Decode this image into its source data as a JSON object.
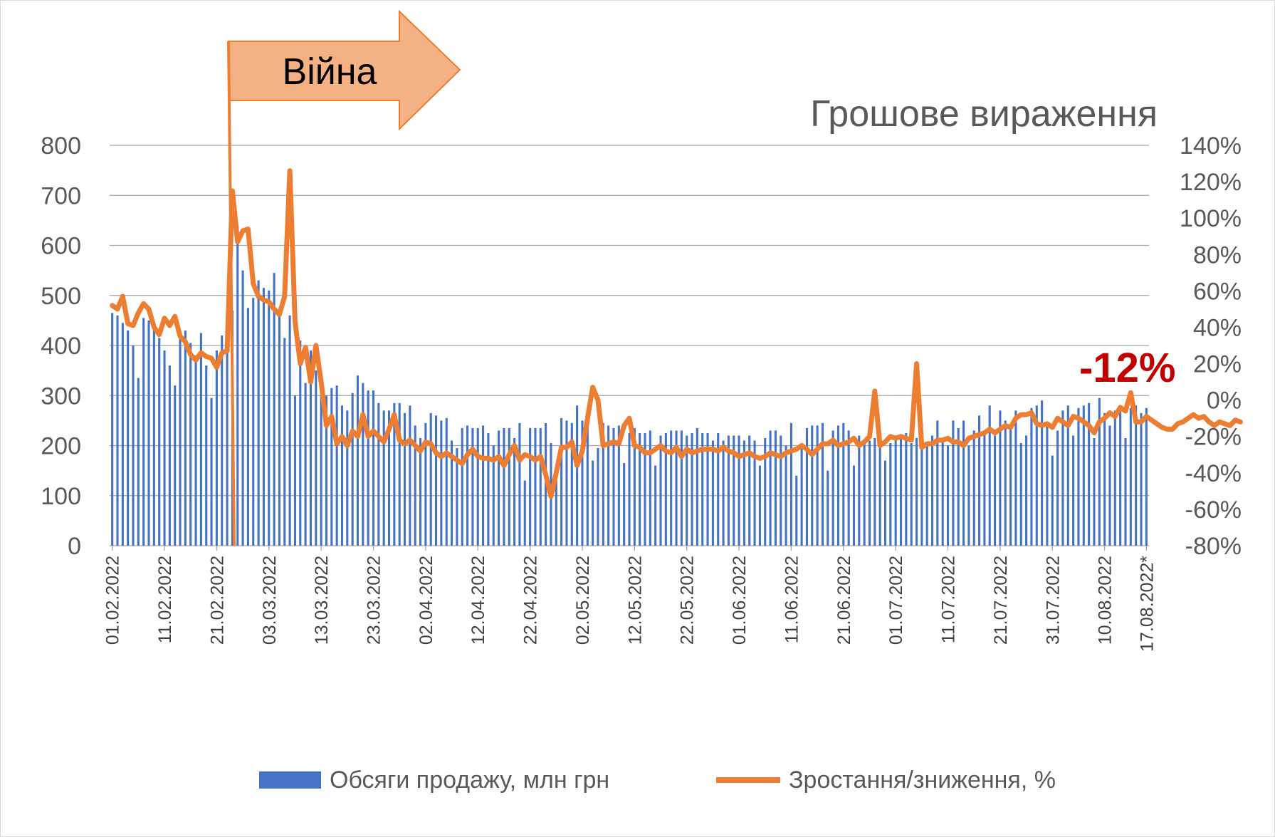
{
  "colors": {
    "bars": "#4472C4",
    "line": "#ED7D31",
    "grid": "#A6A6A6",
    "callout": "#C00000",
    "arrow_fill": "#F4B183",
    "arrow_stroke": "#ED7D31"
  },
  "chart_data": {
    "type": "bar",
    "title": "Грошове вираження",
    "legend_position": "bottom",
    "grid": true,
    "y_left": {
      "ylim": [
        0,
        800
      ],
      "ticks": [
        "0",
        "100",
        "200",
        "300",
        "400",
        "500",
        "600",
        "700",
        "800"
      ]
    },
    "y_right": {
      "ylim": [
        -80,
        140
      ],
      "ticks": [
        "-80%",
        "-60%",
        "-40%",
        "-20%",
        "0%",
        "20%",
        "40%",
        "60%",
        "80%",
        "100%",
        "120%",
        "140%"
      ]
    },
    "x_tick_labels": [
      "01.02.2022",
      "11.02.2022",
      "21.02.2022",
      "03.03.2022",
      "13.03.2022",
      "23.03.2022",
      "02.04.2022",
      "12.04.2022",
      "22.04.2022",
      "02.05.2022",
      "12.05.2022",
      "22.05.2022",
      "01.06.2022",
      "11.06.2022",
      "21.06.2022",
      "01.07.2022",
      "11.07.2022",
      "21.07.2022",
      "31.07.2022",
      "10.08.2022",
      "17.08.2022*"
    ],
    "series": [
      {
        "name": "Обсяги продажу, млн грн",
        "axis": "left",
        "type": "bar",
        "values": [
          465,
          460,
          445,
          430,
          400,
          335,
          455,
          450,
          440,
          415,
          390,
          360,
          320,
          415,
          430,
          405,
          380,
          425,
          360,
          295,
          390,
          420,
          450,
          470,
          640,
          550,
          475,
          495,
          530,
          515,
          510,
          545,
          470,
          415,
          460,
          300,
          410,
          325,
          390,
          350,
          310,
          300,
          315,
          320,
          280,
          270,
          305,
          340,
          325,
          310,
          310,
          285,
          270,
          270,
          285,
          285,
          265,
          280,
          240,
          215,
          245,
          265,
          260,
          250,
          255,
          210,
          195,
          235,
          240,
          235,
          235,
          240,
          225,
          200,
          230,
          235,
          235,
          215,
          245,
          130,
          235,
          235,
          235,
          245,
          205,
          150,
          255,
          250,
          245,
          280,
          250,
          245,
          170,
          195,
          245,
          240,
          235,
          240,
          165,
          225,
          235,
          225,
          225,
          230,
          160,
          220,
          225,
          230,
          230,
          230,
          220,
          225,
          235,
          225,
          225,
          210,
          225,
          210,
          220,
          220,
          220,
          210,
          220,
          210,
          160,
          215,
          230,
          230,
          220,
          200,
          245,
          140,
          205,
          235,
          240,
          240,
          245,
          150,
          230,
          240,
          245,
          230,
          160,
          220,
          210,
          210,
          215,
          225,
          170,
          205,
          220,
          215,
          225,
          205,
          215,
          245,
          200,
          220,
          250,
          215,
          200,
          250,
          235,
          250,
          200,
          230,
          260,
          230,
          280,
          220,
          270,
          250,
          240,
          270,
          205,
          220,
          275,
          280,
          290,
          245,
          180,
          230,
          270,
          280,
          220,
          275,
          280,
          285,
          215,
          295,
          265,
          240,
          270,
          270,
          215,
          275,
          280,
          265,
          275
        ]
      },
      {
        "name": "Зростання/зниження, %",
        "axis": "right",
        "type": "line",
        "values": [
          52,
          50,
          57,
          42,
          41,
          48,
          53,
          50,
          40,
          36,
          45,
          41,
          46,
          35,
          32,
          25,
          22,
          26,
          24,
          23,
          18,
          26,
          27,
          115,
          87,
          93,
          94,
          64,
          57,
          55,
          54,
          50,
          47,
          57,
          126,
          43,
          20,
          29,
          10,
          30,
          10,
          -14,
          -9,
          -24,
          -20,
          -25,
          -17,
          -20,
          -8,
          -20,
          -17,
          -20,
          -23,
          -16,
          -8,
          -22,
          -24,
          -22,
          -25,
          -28,
          -23,
          -24,
          -29,
          -31,
          -29,
          -31,
          -33,
          -35,
          -30,
          -27,
          -31,
          -32,
          -32,
          -33,
          -31,
          -36,
          -30,
          -25,
          -33,
          -30,
          -31,
          -33,
          -31,
          -41,
          -53,
          -40,
          -26,
          -26,
          -23,
          -36,
          -28,
          -10,
          7,
          0,
          -25,
          -24,
          -23,
          -24,
          -14,
          -10,
          -25,
          -26,
          -29,
          -29,
          -27,
          -25,
          -28,
          -29,
          -26,
          -31,
          -27,
          -29,
          -28,
          -27,
          -27,
          -27,
          -28,
          -26,
          -28,
          -29,
          -31,
          -30,
          -29,
          -31,
          -32,
          -31,
          -29,
          -30,
          -31,
          -29,
          -28,
          -27,
          -25,
          -27,
          -30,
          -27,
          -24,
          -24,
          -22,
          -25,
          -24,
          -23,
          -21,
          -25,
          -23,
          -20,
          5,
          -25,
          -23,
          -20,
          -21,
          -20,
          -21,
          -22,
          20,
          -26,
          -24,
          -24,
          -22,
          -22,
          -21,
          -23,
          -23,
          -25,
          -21,
          -20,
          -19,
          -18,
          -16,
          -18,
          -16,
          -14,
          -15,
          -10,
          -8,
          -8,
          -7,
          -13,
          -14,
          -13,
          -15,
          -10,
          -12,
          -14,
          -9,
          -10,
          -12,
          -14,
          -18,
          -12,
          -10,
          -7,
          -9,
          -4,
          -6,
          4,
          -12,
          -12,
          -9,
          -11,
          -13,
          -15,
          -16,
          -16,
          -13,
          -12,
          -10,
          -8,
          -10,
          -9,
          -12,
          -14,
          -12,
          -13,
          -14,
          -11,
          -12
        ]
      }
    ],
    "annotations": {
      "war_label": "Війна",
      "change_label": "-12%"
    }
  }
}
